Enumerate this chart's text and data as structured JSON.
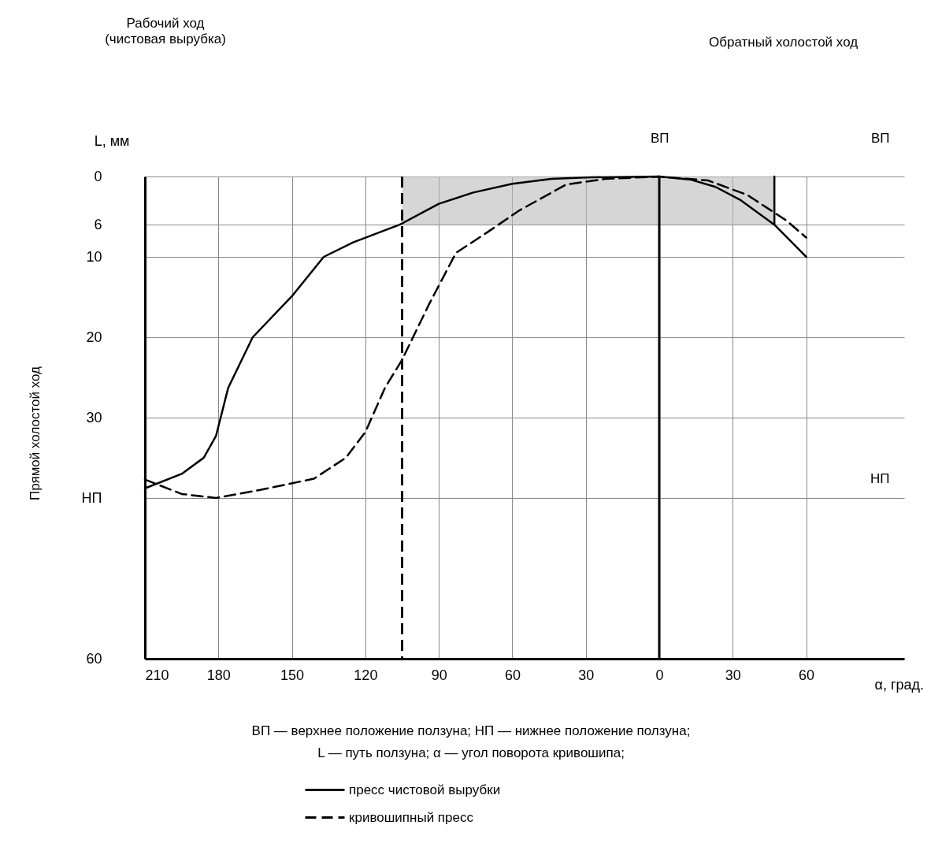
{
  "chart_data": {
    "type": "line",
    "ylabel": "L, мм",
    "xlabel": "α, град.",
    "annotations": [
      "Рабочий ход\n(чистовая вырубка)",
      "Обратный холостой ход",
      "Прямой холостой ход",
      "ВП — верхнее положение ползуна; НП — нижнее положение ползуна;",
      "L — путь ползуна; α — угол поворота кривошипа;",
      "ВП",
      "ВП",
      "НП"
    ],
    "xlim": [
      -210,
      100
    ],
    "xticks": [
      {
        "value": -210,
        "label": "210"
      },
      {
        "value": -180,
        "label": "180"
      },
      {
        "value": -150,
        "label": "150"
      },
      {
        "value": -120,
        "label": "120"
      },
      {
        "value": -90,
        "label": "90"
      },
      {
        "value": -60,
        "label": "60"
      },
      {
        "value": -30,
        "label": "30"
      },
      0,
      30,
      60
    ],
    "ylim": [
      60,
      0
    ],
    "yticks": [
      0,
      6,
      10,
      20,
      30,
      {
        "value": 40,
        "label": "НП"
      },
      60
    ],
    "grid": true,
    "legend": "bottom",
    "series": [
      {
        "type": "area",
        "color": "#bbbbbb",
        "x": [
          -105,
          47
        ],
        "values": [
          6,
          6
        ]
      },
      {
        "name": "пресс чистовой вырубки",
        "color": "#000000",
        "line_style": "solid",
        "x": [
          -210,
          -195,
          -186,
          -181,
          -176,
          -166,
          -150,
          -137,
          -125,
          -106,
          -90,
          -76,
          -60,
          -44,
          -28,
          0,
          13,
          23,
          33,
          47,
          60
        ],
        "values": [
          38.8,
          37,
          35,
          32.3,
          26.3,
          20,
          14.9,
          10,
          8.2,
          6,
          3.4,
          2.0,
          0.9,
          0.3,
          0.1,
          0,
          0.4,
          1.3,
          2.9,
          6,
          10
        ]
      },
      {
        "name": "кривошипный пресс",
        "color": "#000000",
        "line_style": "dashed",
        "x": [
          -210,
          -195,
          -181,
          -163,
          -141,
          -128,
          -120,
          -112,
          -105,
          -94,
          -83,
          -70,
          -57,
          -38,
          -22,
          0,
          20,
          36,
          52,
          60
        ],
        "values": [
          37.7,
          39.5,
          40,
          39,
          37.6,
          35,
          31.8,
          26.3,
          22.8,
          15.9,
          9.5,
          6.9,
          4.2,
          1.0,
          0.3,
          0,
          0.5,
          2.3,
          5.5,
          7.6
        ]
      },
      {
        "color": "#000000",
        "line_style": "solid",
        "x": [
          47,
          47
        ],
        "values": [
          0,
          6
        ]
      }
    ],
    "ref_lines": [
      {
        "axis": "x",
        "value": -105,
        "line_style": "dashed",
        "color": "#000000"
      },
      {
        "axis": "x",
        "value": 0,
        "line_style": "solid",
        "color": "#000000"
      }
    ]
  }
}
